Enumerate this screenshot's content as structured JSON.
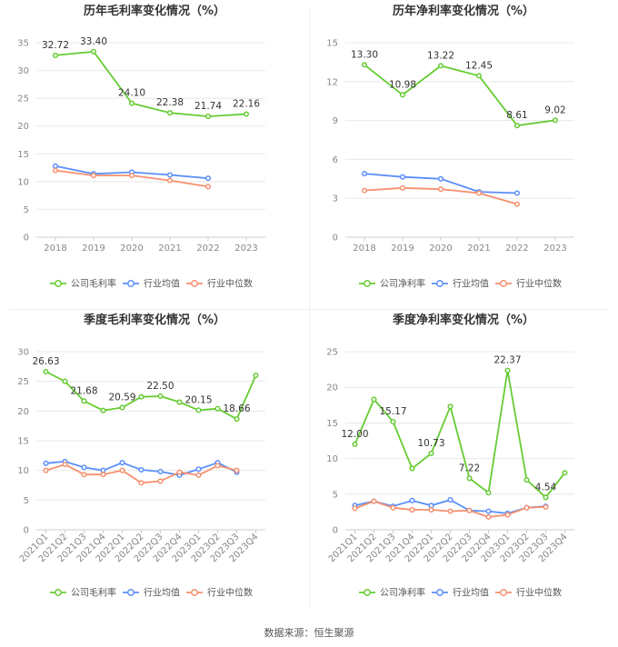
{
  "source_note": "数据来源：恒生聚源",
  "colors": {
    "company": "#66cc33",
    "industry_avg": "#5b8ff9",
    "industry_median": "#f6906f",
    "grid": "#e8e8e8",
    "axis_text": "#888888",
    "title": "#333333"
  },
  "chart_data": [
    {
      "type": "line",
      "title": "历年毛利率变化情况（%）",
      "xlabel": "",
      "ylabel": "",
      "x": [
        "2018",
        "2019",
        "2020",
        "2021",
        "2022",
        "2023"
      ],
      "ylim": [
        0,
        35
      ],
      "yticks": [
        0,
        5,
        10,
        15,
        20,
        25,
        30,
        35
      ],
      "rotate_x": false,
      "legend_position": "bottom",
      "series": [
        {
          "name": "公司毛利率",
          "key": "company",
          "values": [
            32.72,
            33.4,
            24.1,
            22.38,
            21.74,
            22.16
          ],
          "labels": [
            "32.72",
            "33.40",
            "24.10",
            "22.38",
            "21.74",
            "22.16"
          ]
        },
        {
          "name": "行业均值",
          "key": "industry_avg",
          "values": [
            12.8,
            11.4,
            11.7,
            11.2,
            10.6,
            null
          ]
        },
        {
          "name": "行业中位数",
          "key": "industry_median",
          "values": [
            12.0,
            11.1,
            11.1,
            10.2,
            9.1,
            null
          ]
        }
      ]
    },
    {
      "type": "line",
      "title": "历年净利率变化情况（%）",
      "xlabel": "",
      "ylabel": "",
      "x": [
        "2018",
        "2019",
        "2020",
        "2021",
        "2022",
        "2023"
      ],
      "ylim": [
        0,
        15
      ],
      "yticks": [
        0,
        3,
        6,
        9,
        12,
        15
      ],
      "rotate_x": false,
      "legend_position": "bottom",
      "series": [
        {
          "name": "公司净利率",
          "key": "company",
          "values": [
            13.3,
            10.98,
            13.22,
            12.45,
            8.61,
            9.02
          ],
          "labels": [
            "13.30",
            "10.98",
            "13.22",
            "12.45",
            "8.61",
            "9.02"
          ]
        },
        {
          "name": "行业均值",
          "key": "industry_avg",
          "values": [
            4.9,
            4.65,
            4.5,
            3.5,
            3.4,
            null
          ]
        },
        {
          "name": "行业中位数",
          "key": "industry_median",
          "values": [
            3.6,
            3.8,
            3.7,
            3.4,
            2.55,
            null
          ]
        }
      ]
    },
    {
      "type": "line",
      "title": "季度毛利率变化情况（%）",
      "xlabel": "",
      "ylabel": "",
      "x": [
        "2021Q1",
        "2021Q2",
        "2021Q3",
        "2021Q4",
        "2022Q1",
        "2022Q2",
        "2022Q3",
        "2022Q4",
        "2023Q1",
        "2023Q2",
        "2023Q3",
        "2023Q4"
      ],
      "ylim": [
        0,
        30
      ],
      "yticks": [
        0,
        5,
        10,
        15,
        20,
        25,
        30
      ],
      "rotate_x": true,
      "legend_position": "bottom",
      "series": [
        {
          "name": "公司毛利率",
          "key": "company",
          "values": [
            26.63,
            25.0,
            21.68,
            20.1,
            20.59,
            22.4,
            22.5,
            21.5,
            20.15,
            20.4,
            18.66,
            26.0
          ],
          "labels": [
            "26.63",
            "",
            "21.68",
            "",
            "20.59",
            "",
            "22.50",
            "",
            "20.15",
            "",
            "18.66",
            ""
          ]
        },
        {
          "name": "行业均值",
          "key": "industry_avg",
          "values": [
            11.2,
            11.5,
            10.5,
            10.0,
            11.3,
            10.1,
            9.8,
            9.2,
            10.2,
            11.3,
            9.7,
            null
          ]
        },
        {
          "name": "行业中位数",
          "key": "industry_median",
          "values": [
            10.0,
            11.0,
            9.3,
            9.3,
            10.0,
            7.9,
            8.2,
            9.7,
            9.2,
            10.8,
            10.0,
            null
          ]
        }
      ]
    },
    {
      "type": "line",
      "title": "季度净利率变化情况（%）",
      "xlabel": "",
      "ylabel": "",
      "x": [
        "2021Q1",
        "2021Q2",
        "2021Q3",
        "2021Q4",
        "2022Q1",
        "2022Q2",
        "2022Q3",
        "2022Q4",
        "2023Q1",
        "2023Q2",
        "2023Q3",
        "2023Q4"
      ],
      "ylim": [
        0,
        25
      ],
      "yticks": [
        0,
        5,
        10,
        15,
        20,
        25
      ],
      "rotate_x": true,
      "legend_position": "bottom",
      "series": [
        {
          "name": "公司净利率",
          "key": "company",
          "values": [
            12.0,
            18.3,
            15.17,
            8.6,
            10.73,
            17.3,
            7.22,
            5.2,
            22.37,
            7.0,
            4.54,
            8.0
          ],
          "labels": [
            "12.00",
            "",
            "15.17",
            "",
            "10.73",
            "",
            "7.22",
            "",
            "22.37",
            "",
            "4.54",
            ""
          ]
        },
        {
          "name": "行业均值",
          "key": "industry_avg",
          "values": [
            3.4,
            4.0,
            3.3,
            4.1,
            3.4,
            4.2,
            2.7,
            2.6,
            2.3,
            3.1,
            3.3,
            null
          ]
        },
        {
          "name": "行业中位数",
          "key": "industry_median",
          "values": [
            3.0,
            4.0,
            3.1,
            2.8,
            2.8,
            2.6,
            2.7,
            1.8,
            2.1,
            3.1,
            3.2,
            null
          ]
        }
      ]
    }
  ]
}
